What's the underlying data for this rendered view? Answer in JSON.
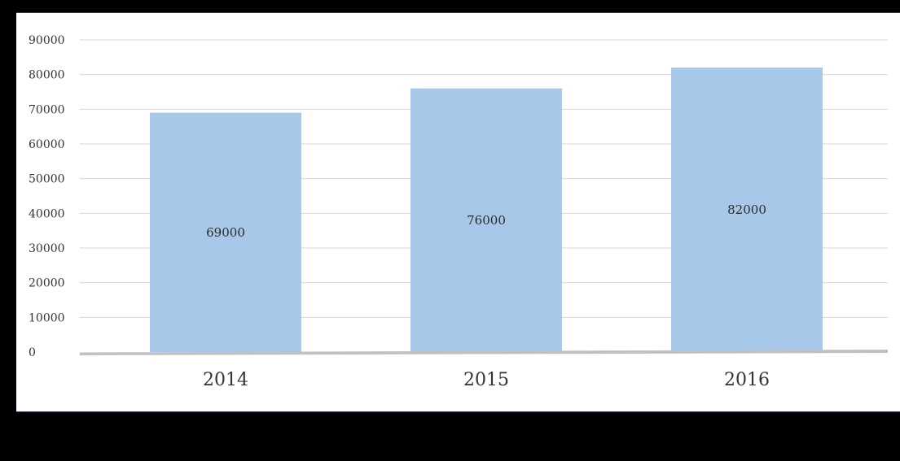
{
  "chart_data": {
    "type": "bar",
    "categories": [
      "2014",
      "2015",
      "2016"
    ],
    "values": [
      69000,
      76000,
      82000
    ],
    "data_labels": [
      "69000",
      "76000",
      "82000"
    ],
    "title": "",
    "xlabel": "",
    "ylabel": "",
    "ylim": [
      0,
      90000
    ],
    "yticks": [
      0,
      10000,
      20000,
      30000,
      40000,
      50000,
      60000,
      70000,
      80000,
      90000
    ],
    "grid": true,
    "legend": "none",
    "colors": {
      "bar": "#a7c8e8",
      "grid": "#d6d6d6",
      "baseline": "#c0c0c0",
      "text": "#333333"
    }
  }
}
